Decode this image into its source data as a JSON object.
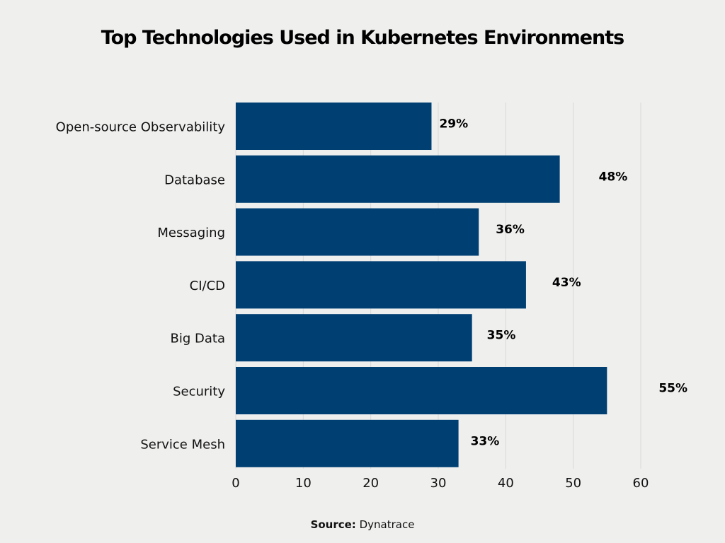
{
  "chart_data": {
    "type": "bar",
    "orientation": "horizontal",
    "title": "Top Technologies Used in Kubernetes Environments",
    "categories": [
      "Open-source Observability",
      "Database",
      "Messaging",
      "CI/CD",
      "Big Data",
      "Security",
      "Service Mesh"
    ],
    "values": [
      29,
      48,
      36,
      43,
      35,
      55,
      33
    ],
    "data_labels": [
      "29%",
      "48%",
      "36%",
      "43%",
      "35%",
      "55%",
      "33%"
    ],
    "xlim": [
      0,
      60
    ],
    "xticks": [
      0,
      10,
      20,
      30,
      40,
      50,
      60
    ],
    "grid": true,
    "bar_color": "#003f72",
    "xlabel": "",
    "ylabel": ""
  },
  "source": {
    "label": "Source:",
    "value": "Dynatrace"
  }
}
